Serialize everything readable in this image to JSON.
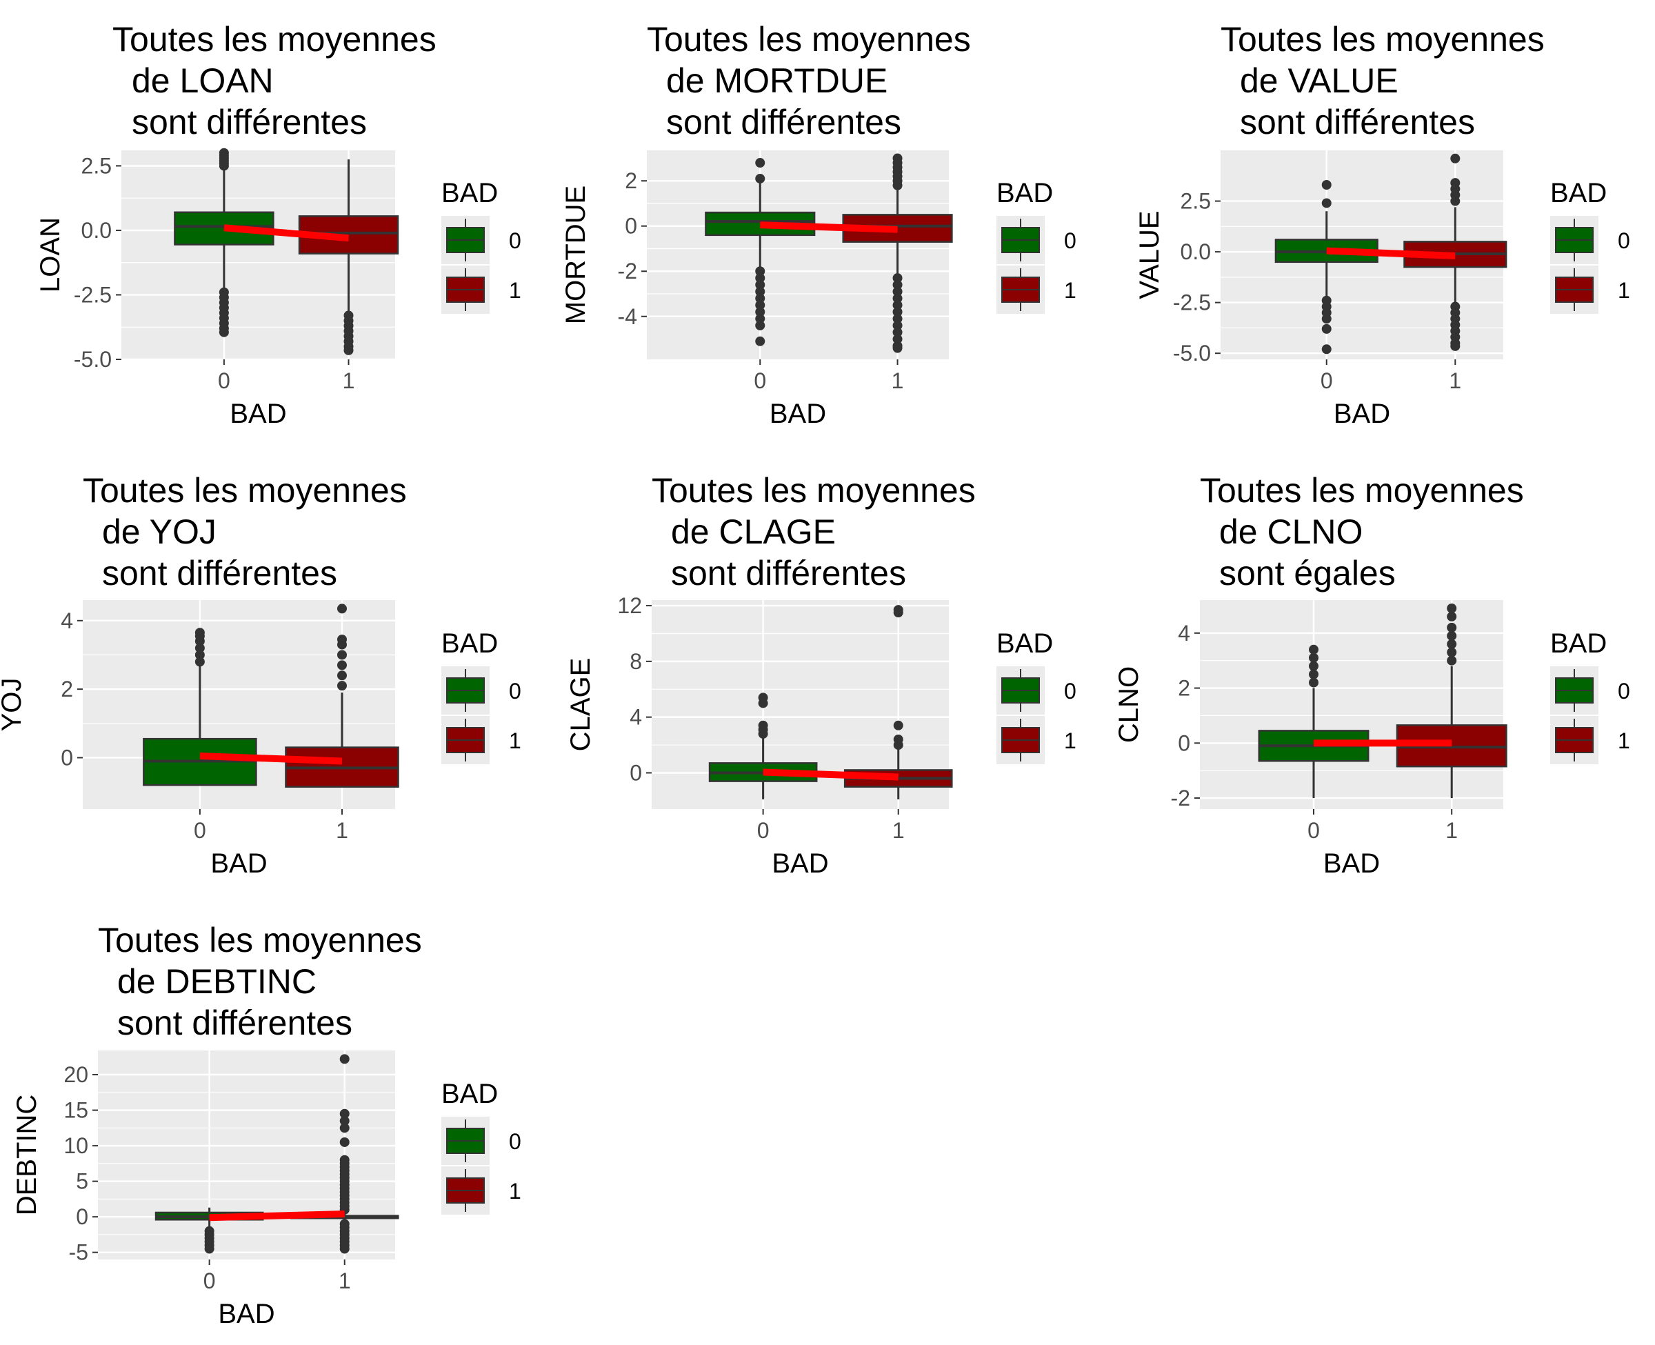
{
  "colors": {
    "panel_bg": "#EBEBEB",
    "grid": "#FFFFFF",
    "box_0": "#006400",
    "box_1": "#8B0000",
    "box_edge": "#333333",
    "mean_line": "#FF0000",
    "tick_text": "#4D4D4D",
    "title_text": "#000000"
  },
  "chart_data": [
    {
      "type": "boxplot",
      "title": [
        "Toutes les moyennes",
        "de LOAN",
        "sont différentes"
      ],
      "xlabel": "BAD",
      "ylabel": "LOAN",
      "categories": [
        "0",
        "1"
      ],
      "ylim": [
        -5.0,
        3.1
      ],
      "yticks": [
        2.5,
        0.0,
        -2.5,
        -5.0
      ],
      "yticklabels": [
        "2.5",
        "0.0",
        "-2.5",
        "-5.0"
      ],
      "boxes": [
        {
          "q1": -0.55,
          "median": 0.15,
          "q3": 0.7,
          "whisker_low": -2.3,
          "whisker_high": 2.4,
          "outliers": [
            2.5,
            2.6,
            2.7,
            2.8,
            2.9,
            3.0,
            -2.4,
            -2.6,
            -2.8,
            -3.0,
            -3.2,
            -3.4,
            -3.6,
            -3.8,
            -3.95
          ]
        },
        {
          "q1": -0.9,
          "median": -0.1,
          "q3": 0.55,
          "whisker_low": -3.2,
          "whisker_high": 2.75,
          "outliers": [
            -3.3,
            -3.5,
            -3.7,
            -3.9,
            -4.1,
            -4.3,
            -4.5,
            -4.65
          ]
        }
      ],
      "means": [
        0.1,
        -0.3
      ],
      "legend": {
        "title": "BAD",
        "labels": [
          "0",
          "1"
        ]
      }
    },
    {
      "type": "boxplot",
      "title": [
        "Toutes les moyennes",
        "de MORTDUE",
        "sont différentes"
      ],
      "xlabel": "BAD",
      "ylabel": "MORTDUE",
      "categories": [
        "0",
        "1"
      ],
      "ylim": [
        -5.9,
        3.35
      ],
      "yticks": [
        2,
        0,
        -2,
        -4
      ],
      "yticklabels": [
        "2",
        "0",
        "-2",
        "-4"
      ],
      "boxes": [
        {
          "q1": -0.4,
          "median": 0.2,
          "q3": 0.6,
          "whisker_low": -1.8,
          "whisker_high": 1.9,
          "outliers": [
            2.1,
            2.8,
            -2.0,
            -2.3,
            -2.6,
            -2.9,
            -3.2,
            -3.5,
            -3.8,
            -4.1,
            -4.4,
            -5.1
          ]
        },
        {
          "q1": -0.7,
          "median": 0.0,
          "q3": 0.5,
          "whisker_low": -2.1,
          "whisker_high": 1.6,
          "outliers": [
            1.8,
            2.0,
            2.2,
            2.4,
            2.6,
            2.8,
            3.0,
            -2.3,
            -2.6,
            -2.9,
            -3.2,
            -3.5,
            -3.8,
            -4.1,
            -4.4,
            -4.7,
            -5.0,
            -5.3,
            -5.4
          ]
        }
      ],
      "means": [
        0.05,
        -0.15
      ],
      "legend": {
        "title": "BAD",
        "labels": [
          "0",
          "1"
        ]
      }
    },
    {
      "type": "boxplot",
      "title": [
        "Toutes les moyennes",
        "de VALUE",
        "sont différentes"
      ],
      "xlabel": "BAD",
      "ylabel": "VALUE",
      "categories": [
        "0",
        "1"
      ],
      "ylim": [
        -5.3,
        5.0
      ],
      "yticks": [
        2.5,
        0.0,
        -2.5,
        -5.0
      ],
      "yticklabels": [
        "2.5",
        "0.0",
        "-2.5",
        "-5.0"
      ],
      "boxes": [
        {
          "q1": -0.5,
          "median": 0.0,
          "q3": 0.6,
          "whisker_low": -2.2,
          "whisker_high": 2.0,
          "outliers": [
            2.4,
            3.3,
            -2.4,
            -2.7,
            -3.0,
            -3.3,
            -3.8,
            -4.8
          ]
        },
        {
          "q1": -0.75,
          "median": -0.1,
          "q3": 0.5,
          "whisker_low": -2.5,
          "whisker_high": 2.2,
          "outliers": [
            2.5,
            2.8,
            3.1,
            3.4,
            4.6,
            -2.7,
            -3.0,
            -3.3,
            -3.6,
            -3.9,
            -4.2,
            -4.5,
            -4.65
          ]
        }
      ],
      "means": [
        0.05,
        -0.2
      ],
      "legend": {
        "title": "BAD",
        "labels": [
          "0",
          "1"
        ]
      }
    },
    {
      "type": "boxplot",
      "title": [
        "Toutes les moyennes",
        "de YOJ",
        "sont différentes"
      ],
      "xlabel": "BAD",
      "ylabel": "YOJ",
      "categories": [
        "0",
        "1"
      ],
      "ylim": [
        -1.5,
        4.6
      ],
      "yticks": [
        4,
        2,
        0
      ],
      "yticklabels": [
        "4",
        "2",
        "0"
      ],
      "boxes": [
        {
          "q1": -0.8,
          "median": -0.1,
          "q3": 0.55,
          "whisker_low": -0.8,
          "whisker_high": 2.7,
          "outliers": [
            2.8,
            3.0,
            3.2,
            3.4,
            3.55,
            3.65
          ]
        },
        {
          "q1": -0.85,
          "median": -0.3,
          "q3": 0.3,
          "whisker_low": -0.85,
          "whisker_high": 1.9,
          "outliers": [
            2.1,
            2.4,
            2.7,
            3.0,
            3.3,
            3.45,
            4.35
          ]
        }
      ],
      "means": [
        0.05,
        -0.1
      ],
      "legend": {
        "title": "BAD",
        "labels": [
          "0",
          "1"
        ]
      }
    },
    {
      "type": "boxplot",
      "title": [
        "Toutes les moyennes",
        "de CLAGE",
        "sont différentes"
      ],
      "xlabel": "BAD",
      "ylabel": "CLAGE",
      "categories": [
        "0",
        "1"
      ],
      "ylim": [
        -2.6,
        12.4
      ],
      "yticks": [
        12,
        8,
        4,
        0
      ],
      "yticklabels": [
        "12",
        "8",
        "4",
        "0"
      ],
      "boxes": [
        {
          "q1": -0.6,
          "median": 0.0,
          "q3": 0.7,
          "whisker_low": -1.9,
          "whisker_high": 2.6,
          "outliers": [
            2.8,
            3.1,
            3.4,
            5.0,
            5.4
          ]
        },
        {
          "q1": -1.0,
          "median": -0.4,
          "q3": 0.2,
          "whisker_low": -1.9,
          "whisker_high": 1.8,
          "outliers": [
            2.0,
            2.4,
            3.4,
            11.5,
            11.7
          ]
        }
      ],
      "means": [
        0.05,
        -0.3
      ],
      "legend": {
        "title": "BAD",
        "labels": [
          "0",
          "1"
        ]
      }
    },
    {
      "type": "boxplot",
      "title": [
        "Toutes les moyennes",
        "de CLNO",
        "sont égales"
      ],
      "xlabel": "BAD",
      "ylabel": "CLNO",
      "categories": [
        "0",
        "1"
      ],
      "ylim": [
        -2.4,
        5.2
      ],
      "yticks": [
        4,
        2,
        0,
        -2
      ],
      "yticklabels": [
        "4",
        "2",
        "0",
        "-2"
      ],
      "boxes": [
        {
          "q1": -0.65,
          "median": -0.1,
          "q3": 0.45,
          "whisker_low": -2.0,
          "whisker_high": 2.0,
          "outliers": [
            2.2,
            2.5,
            2.8,
            3.1,
            3.4
          ]
        },
        {
          "q1": -0.85,
          "median": -0.15,
          "q3": 0.65,
          "whisker_low": -2.0,
          "whisker_high": 2.8,
          "outliers": [
            3.0,
            3.3,
            3.6,
            3.9,
            4.2,
            4.6,
            4.9
          ]
        }
      ],
      "means": [
        0.0,
        0.0
      ],
      "legend": {
        "title": "BAD",
        "labels": [
          "0",
          "1"
        ]
      }
    },
    {
      "type": "boxplot",
      "title": [
        "Toutes les moyennes",
        "de DEBTINC",
        "sont différentes"
      ],
      "xlabel": "BAD",
      "ylabel": "DEBTINC",
      "categories": [
        "0",
        "1"
      ],
      "ylim": [
        -6.0,
        23.4
      ],
      "yticks": [
        20,
        15,
        10,
        5,
        0,
        -5
      ],
      "yticklabels": [
        "20",
        "15",
        "10",
        "5",
        "0",
        "-5"
      ],
      "boxes": [
        {
          "q1": -0.4,
          "median": 0.0,
          "q3": 0.6,
          "whisker_low": -1.5,
          "whisker_high": 1.3,
          "outliers": [
            -2.0,
            -2.5,
            -3.0,
            -3.5,
            -4.0,
            -4.5
          ]
        },
        {
          "q1": -0.2,
          "median": 0.0,
          "q3": 0.15,
          "whisker_low": -0.5,
          "whisker_high": 0.5,
          "outliers": [
            1.0,
            1.5,
            2.0,
            2.5,
            3.0,
            3.5,
            4.0,
            4.5,
            5.0,
            5.5,
            6.0,
            6.5,
            7.0,
            7.5,
            8.0,
            10.5,
            12.5,
            13.5,
            14.5,
            22.2,
            -1.0,
            -1.5,
            -2.0,
            -2.5,
            -3.0,
            -3.5,
            -4.0,
            -4.5
          ]
        }
      ],
      "means": [
        -0.1,
        0.4
      ],
      "legend": {
        "title": "BAD",
        "labels": [
          "0",
          "1"
        ]
      }
    }
  ]
}
